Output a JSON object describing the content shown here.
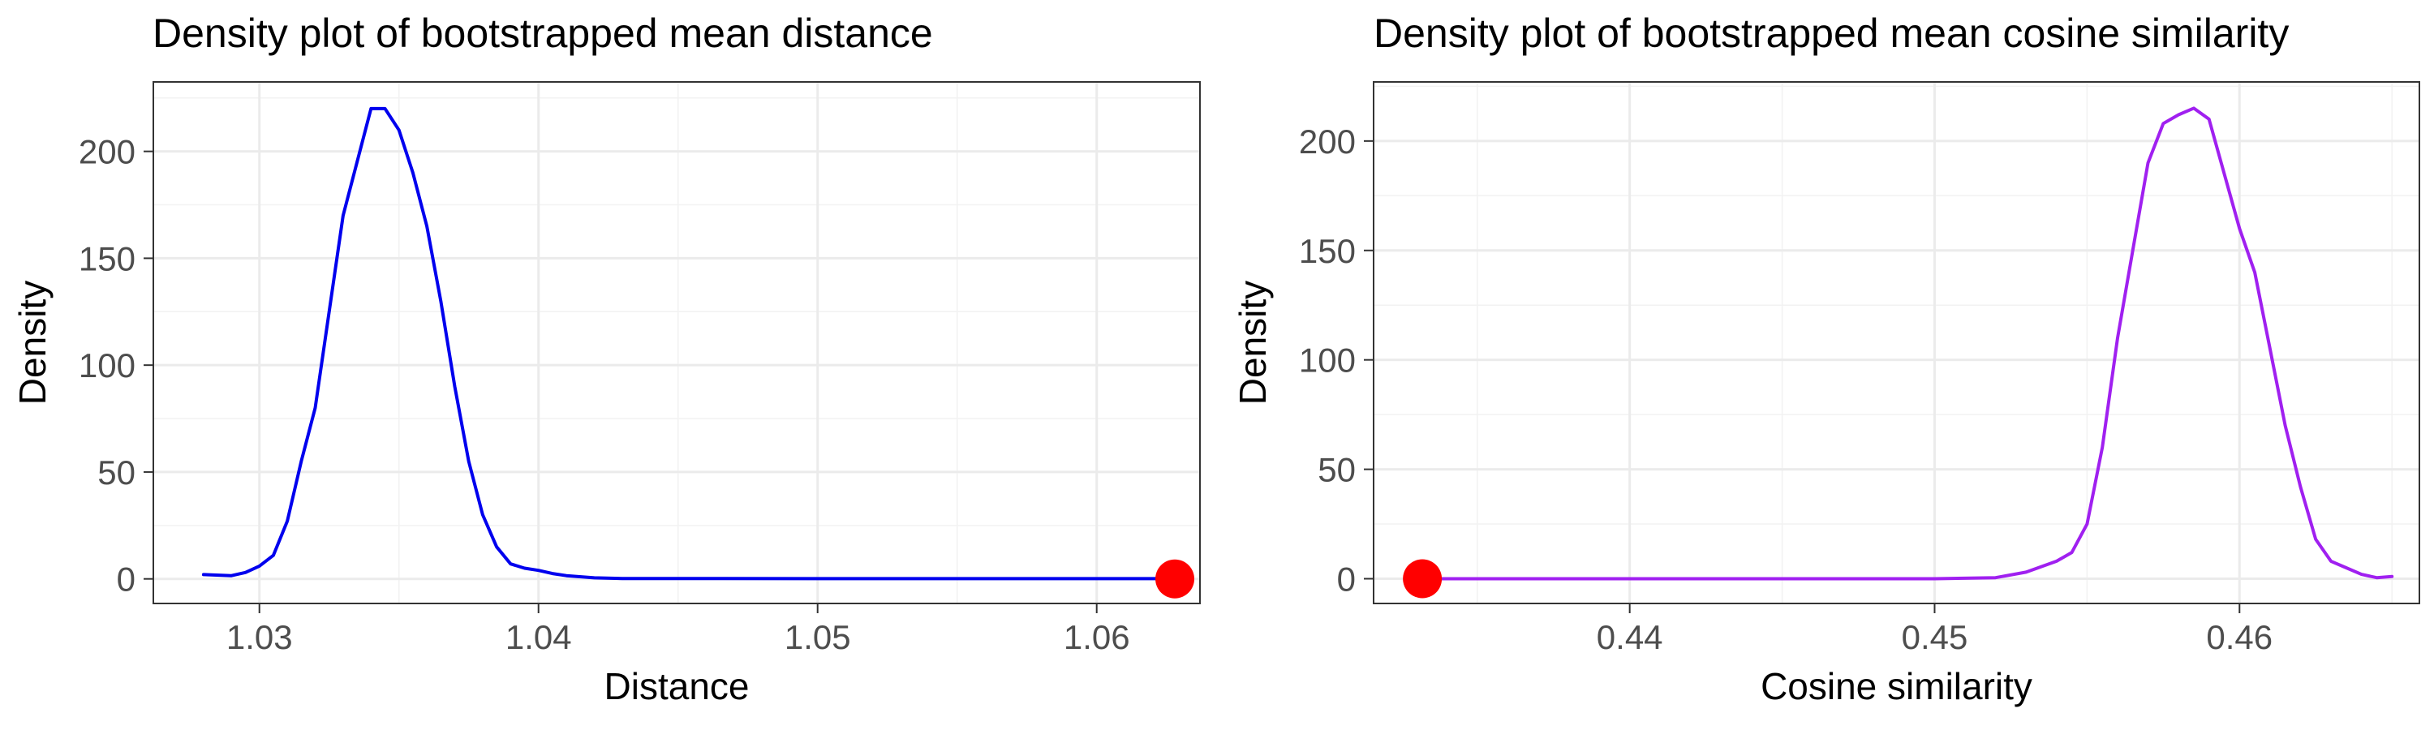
{
  "chart_data": [
    {
      "type": "line",
      "title": "Density plot of bootstrapped mean distance",
      "xlabel": "Distance",
      "ylabel": "Density",
      "xlim": [
        1.0262,
        1.0637
      ],
      "ylim": [
        -11.5,
        232.5
      ],
      "xticks": [
        1.03,
        1.04,
        1.05,
        1.06
      ],
      "xtick_labels": [
        "1.03",
        "1.04",
        "1.05",
        "1.06"
      ],
      "yticks": [
        0,
        50,
        100,
        150,
        200
      ],
      "ytick_labels": [
        "0",
        "50",
        "100",
        "150",
        "200"
      ],
      "grid": true,
      "line_color": "#0000ee",
      "x": [
        1.028,
        1.029,
        1.0295,
        1.03,
        1.0305,
        1.031,
        1.0315,
        1.032,
        1.0325,
        1.033,
        1.0335,
        1.034,
        1.0345,
        1.035,
        1.0355,
        1.036,
        1.0365,
        1.037,
        1.0375,
        1.038,
        1.0385,
        1.039,
        1.0395,
        1.04,
        1.0405,
        1.041,
        1.042,
        1.043,
        1.05,
        1.0628
      ],
      "y": [
        2,
        1.5,
        3,
        6,
        11,
        27,
        55,
        80,
        125,
        170,
        195,
        220,
        220,
        210,
        190,
        165,
        130,
        90,
        55,
        30,
        15,
        7,
        5,
        4,
        2.5,
        1.5,
        0.5,
        0.2,
        0.1,
        0.1
      ],
      "point": {
        "x": 1.0628,
        "y": 0,
        "color": "#ff0000"
      }
    },
    {
      "type": "line",
      "title": "Density plot of bootstrapped mean cosine similarity",
      "xlabel": "Cosine similarity",
      "ylabel": "Density",
      "xlim": [
        0.4316,
        0.4659
      ],
      "ylim": [
        -11.3,
        227
      ],
      "xticks": [
        0.44,
        0.45,
        0.46
      ],
      "xtick_labels": [
        "0.44",
        "0.45",
        "0.46"
      ],
      "yticks": [
        0,
        50,
        100,
        150,
        200
      ],
      "ytick_labels": [
        "0",
        "50",
        "100",
        "150",
        "200"
      ],
      "grid": true,
      "line_color": "#a020f0",
      "x": [
        0.4332,
        0.44,
        0.45,
        0.452,
        0.453,
        0.454,
        0.4545,
        0.455,
        0.4555,
        0.456,
        0.4565,
        0.457,
        0.4575,
        0.458,
        0.4585,
        0.459,
        0.4595,
        0.46,
        0.4605,
        0.461,
        0.4615,
        0.462,
        0.4625,
        0.463,
        0.4635,
        0.464,
        0.4645,
        0.465
      ],
      "y": [
        0,
        0,
        0,
        0.5,
        3,
        8,
        12,
        25,
        60,
        110,
        150,
        190,
        208,
        212,
        215,
        210,
        185,
        160,
        140,
        105,
        70,
        42,
        18,
        8,
        5,
        2,
        0.5,
        1
      ],
      "point": {
        "x": 0.4332,
        "y": 0,
        "color": "#ff0000"
      }
    }
  ]
}
